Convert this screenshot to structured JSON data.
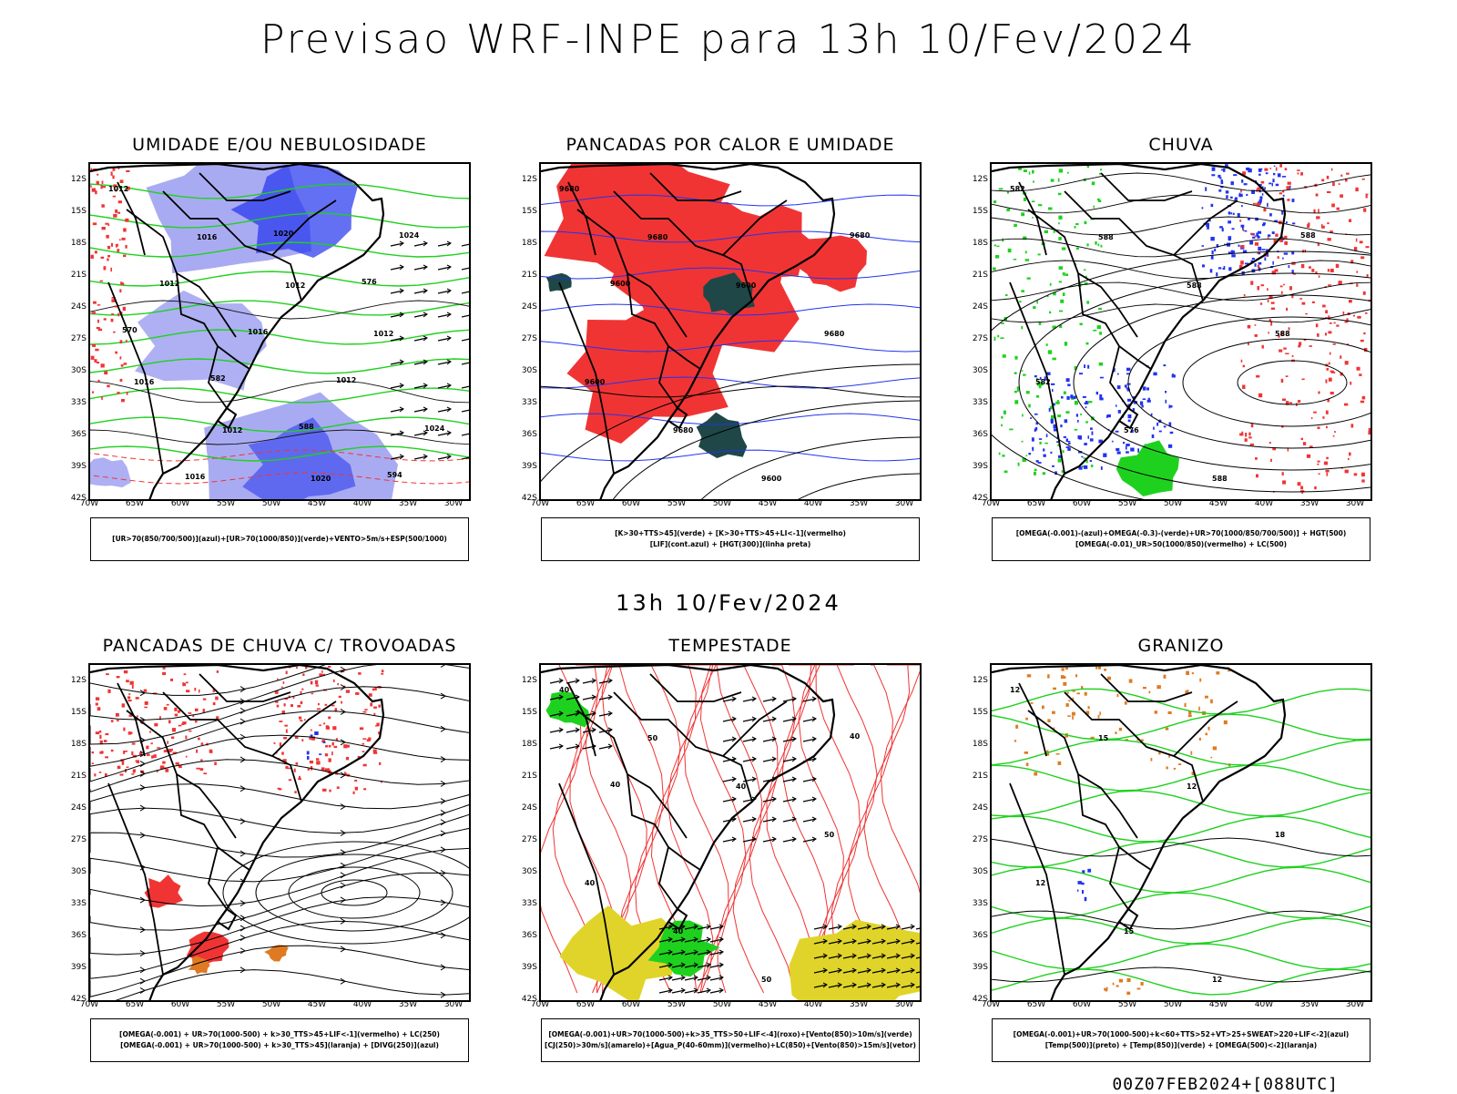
{
  "main_title": "Previsao WRF-INPE  para 13h 10/Fev/2024",
  "mid_title": "13h 10/Fev/2024",
  "footer": "00Z07FEB2024+[088UTC]",
  "axes": {
    "lat_labels": [
      "12S",
      "15S",
      "18S",
      "21S",
      "24S",
      "27S",
      "30S",
      "33S",
      "36S",
      "39S",
      "42S"
    ],
    "lon_labels": [
      "70W",
      "65W",
      "60W",
      "55W",
      "50W",
      "45W",
      "40W",
      "35W",
      "30W"
    ]
  },
  "colors": {
    "green": "#1fd11f",
    "blue": "#2233ee",
    "lightblue": "#9a9cf0",
    "red": "#f03434",
    "darkgreen": "#1f4747",
    "yellow": "#e0d42a",
    "orange": "#e07a22"
  },
  "panels": [
    {
      "title": "UMIDADE E/OU NEBULOSIDADE",
      "legend": [
        "[UR>70(850/700/500)](azul)+[UR>70(1000/850)](verde)+VENTO>5m/s+ESP(500/1000)"
      ],
      "contour_labels": [
        "1012",
        "1016",
        "1012",
        "1012",
        "1016",
        "1012",
        "1020",
        "1024",
        "1012",
        "1016",
        "1012",
        "1024",
        "1016",
        "1020",
        "576",
        "570",
        "582",
        "588",
        "594"
      ]
    },
    {
      "title": "PANCADAS POR CALOR E UMIDADE",
      "legend": [
        "[K>30+TTS>45](verde) + [K>30+TTS>45+LI<-1](vermelho)",
        "[LIF](cont.azul) + [HGT(300)](linha preta)"
      ],
      "contour_labels": [
        "9680",
        "9680",
        "9600",
        "9680",
        "9600",
        "9680",
        "9600",
        "9680",
        "9600"
      ]
    },
    {
      "title": "CHUVA",
      "legend": [
        "[OMEGA(-0.001)-(azul)+OMEGA(-0.3)-(verde)+UR>70(1000/850/700/500)] + HGT(500)",
        "[OMEGA(-0.01)_UR>50(1000/850)(vermelho) + LC(500)"
      ],
      "contour_labels": [
        "582",
        "588",
        "588",
        "588",
        "582",
        "576",
        "588",
        "588"
      ]
    },
    {
      "title": "PANCADAS DE CHUVA C/ TROVOADAS",
      "legend": [
        "[OMEGA(-0.001) + UR>70(1000-500) + k>30_TTS>45+LIF<-1](vermelho) + LC(250)",
        "[OMEGA(-0.001) + UR>70(1000-500) + k>30_TTS>45](laranja) + [DIVG(250)](azul)"
      ],
      "contour_labels": []
    },
    {
      "title": "TEMPESTADE",
      "legend": [
        "[OMEGA(-0.001)+UR>70(1000-500)+k>35_TTS>50+LIF<-4](roxo)+[Vento(850)>10m/s](verde)",
        "[CJ(250)>30m/s](amarelo)+[Agua_P(40-60mm)](vermelho)+LC(850)+[Vento(850)>15m/s](vetor)"
      ],
      "contour_labels": [
        "40",
        "50",
        "40",
        "50",
        "40",
        "40",
        "50",
        "40",
        "40"
      ]
    },
    {
      "title": "GRANIZO",
      "legend": [
        "[OMEGA(-0.001)+UR>70(1000-500)+k<60+TTS>52+VT>25+SWEAT>220+LIF<-2](azul)",
        "[Temp(500)](preto) + [Temp(850)](verde) + [OMEGA(500)<-2](laranja)"
      ],
      "contour_labels": [
        "12",
        "15",
        "12",
        "18",
        "12",
        "15",
        "12"
      ]
    }
  ]
}
